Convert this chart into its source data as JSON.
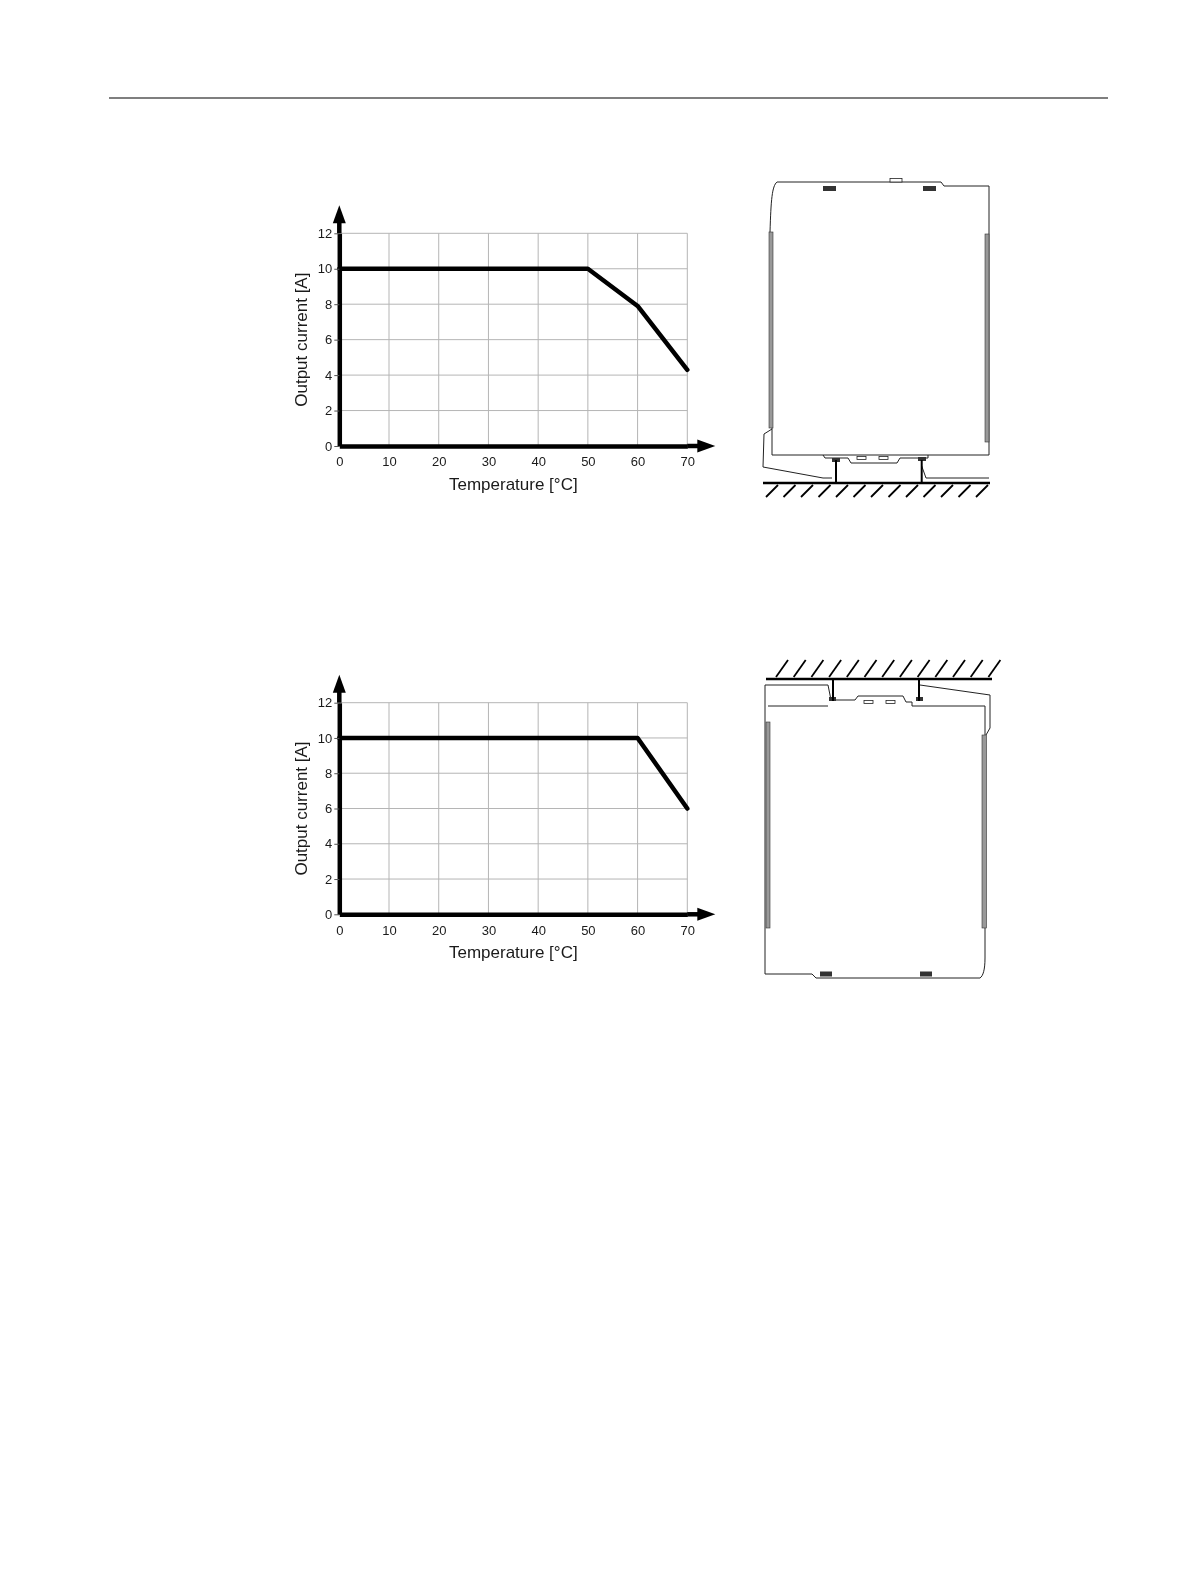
{
  "chart_data": [
    {
      "type": "line",
      "x": [
        0,
        50,
        60,
        70
      ],
      "values": [
        10,
        10,
        7.9,
        4.3
      ],
      "color": "#000000",
      "xlim": [
        0,
        70
      ],
      "ylim": [
        0,
        12
      ],
      "xticks": [
        0,
        10,
        20,
        30,
        40,
        50,
        60,
        70
      ],
      "yticks": [
        0,
        2,
        4,
        6,
        8,
        10,
        12
      ],
      "xlabel": "Temperature [°C]",
      "ylabel": "Output current [A]",
      "grid": true
    },
    {
      "type": "line",
      "x": [
        0,
        60,
        70
      ],
      "values": [
        10,
        10,
        6
      ],
      "color": "#000000",
      "xlim": [
        0,
        70
      ],
      "ylim": [
        0,
        12
      ],
      "xticks": [
        0,
        10,
        20,
        30,
        40,
        50,
        60,
        70
      ],
      "yticks": [
        0,
        2,
        4,
        6,
        8,
        10,
        12
      ],
      "xlabel": "Temperature [°C]",
      "ylabel": "Output current [A]",
      "grid": true
    }
  ]
}
